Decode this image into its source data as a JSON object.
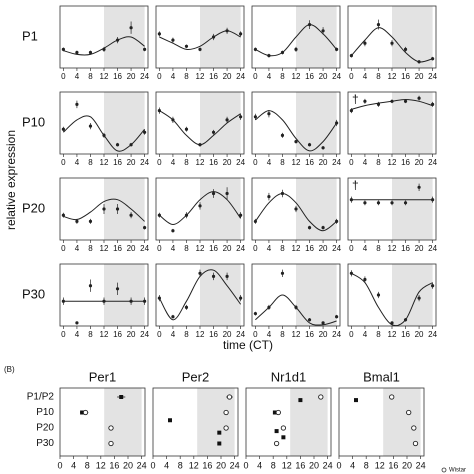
{
  "chart_data": [
    {
      "type": "line",
      "xlabel": "time (CT)",
      "ylabel": "relative expression",
      "row_labels": [
        "P1",
        "P10",
        "P20",
        "P30"
      ],
      "x": [
        0,
        4,
        8,
        12,
        16,
        20,
        24
      ],
      "xticks": [
        0,
        4,
        8,
        12,
        16,
        20,
        24
      ],
      "xlim": [
        -1,
        25
      ],
      "ylim": [
        0,
        1
      ],
      "shade": [
        12,
        24
      ],
      "point_color": "#222222",
      "curve_color": "#222222",
      "shade_color": "#e3e3e3",
      "panels": [
        {
          "values": [
            0.3,
            0.25,
            0.25,
            0.3,
            0.45,
            0.65,
            0.3
          ],
          "errors": [
            0.03,
            0.03,
            0.03,
            0.04,
            0.05,
            0.1,
            0.03
          ],
          "curve": [
            0.28,
            0.22,
            0.22,
            0.32,
            0.45,
            0.5,
            0.35
          ]
        },
        {
          "values": [
            0.55,
            0.45,
            0.35,
            0.3,
            0.5,
            0.6,
            0.55
          ],
          "errors": [
            0.04,
            0.04,
            0.03,
            0.03,
            0.05,
            0.05,
            0.04
          ],
          "curve": [
            0.5,
            0.4,
            0.3,
            0.35,
            0.5,
            0.6,
            0.5
          ]
        },
        {
          "values": [
            0.3,
            0.2,
            0.25,
            0.3,
            0.7,
            0.6,
            0.3
          ],
          "errors": [
            0.03,
            0.03,
            0.03,
            0.04,
            0.07,
            0.06,
            0.03
          ],
          "curve": [
            0.3,
            0.2,
            0.25,
            0.5,
            0.7,
            0.55,
            0.3
          ]
        },
        {
          "values": [
            0.2,
            0.4,
            0.7,
            0.4,
            0.3,
            0.1,
            0.15
          ],
          "errors": [
            0.03,
            0.05,
            0.08,
            0.05,
            0.04,
            0.03,
            0.03
          ],
          "curve": [
            0.2,
            0.45,
            0.65,
            0.5,
            0.25,
            0.1,
            0.15
          ]
        },
        {
          "values": [
            0.4,
            0.8,
            0.45,
            0.3,
            0.15,
            0.15,
            0.35
          ],
          "errors": [
            0.04,
            0.06,
            0.05,
            0.04,
            0.03,
            0.03,
            0.04
          ],
          "curve": [
            0.35,
            0.55,
            0.6,
            0.3,
            0.05,
            0.15,
            0.4
          ]
        },
        {
          "values": [
            0.7,
            0.55,
            0.4,
            0.15,
            0.35,
            0.55,
            0.6
          ],
          "errors": [
            0.05,
            0.05,
            0.04,
            0.03,
            0.04,
            0.05,
            0.05
          ],
          "curve": [
            0.7,
            0.55,
            0.3,
            0.15,
            0.3,
            0.5,
            0.65
          ]
        },
        {
          "values": [
            0.6,
            0.65,
            0.3,
            0.2,
            0.15,
            0.1,
            0.5
          ],
          "errors": [
            0.05,
            0.06,
            0.04,
            0.03,
            0.03,
            0.03,
            0.05
          ],
          "curve": [
            0.55,
            0.7,
            0.55,
            0.25,
            0.05,
            0.2,
            0.5
          ]
        },
        {
          "values": [
            0.7,
            0.85,
            0.8,
            0.85,
            0.85,
            0.9,
            0.8
          ],
          "errors": [
            0.04,
            0.04,
            0.04,
            0.03,
            0.03,
            0.04,
            0.04
          ],
          "curve": [
            0.72,
            0.78,
            0.82,
            0.85,
            0.88,
            0.85,
            0.78
          ],
          "mark": "†"
        },
        {
          "values": [
            0.4,
            0.3,
            0.3,
            0.5,
            0.5,
            0.4,
            0.2
          ],
          "errors": [
            0.04,
            0.04,
            0.04,
            0.08,
            0.08,
            0.05,
            0.03
          ],
          "curve": [
            0.38,
            0.33,
            0.45,
            0.62,
            0.65,
            0.5,
            0.3
          ]
        },
        {
          "values": [
            0.4,
            0.15,
            0.4,
            0.55,
            0.75,
            0.75,
            0.4
          ],
          "errors": [
            0.04,
            0.03,
            0.05,
            0.06,
            0.07,
            0.1,
            0.05
          ],
          "curve": [
            0.4,
            0.25,
            0.4,
            0.65,
            0.78,
            0.65,
            0.35
          ]
        },
        {
          "values": [
            0.3,
            0.7,
            0.75,
            0.5,
            0.2,
            0.2,
            0.3
          ],
          "errors": [
            0.04,
            0.06,
            0.06,
            0.05,
            0.03,
            0.03,
            0.04
          ],
          "curve": [
            0.3,
            0.6,
            0.75,
            0.6,
            0.3,
            0.15,
            0.3
          ]
        },
        {
          "values": [
            0.65,
            0.6,
            0.6,
            0.6,
            0.6,
            0.85,
            0.65
          ],
          "errors": [
            0.05,
            0.04,
            0.04,
            0.04,
            0.04,
            0.06,
            0.05
          ],
          "curve": [
            0.65,
            0.65,
            0.65,
            0.65,
            0.65,
            0.65,
            0.65
          ],
          "mark": "†"
        },
        {
          "values": [
            0.4,
            0.05,
            0.65,
            0.4,
            0.6,
            0.4,
            0.4
          ],
          "errors": [
            0.06,
            0.02,
            0.1,
            0.06,
            0.1,
            0.06,
            0.06
          ],
          "curve": [
            0.4,
            0.4,
            0.4,
            0.4,
            0.4,
            0.4,
            0.4
          ]
        },
        {
          "values": [
            0.45,
            0.15,
            0.3,
            0.85,
            0.8,
            0.8,
            0.45
          ],
          "errors": [
            0.05,
            0.03,
            0.04,
            0.06,
            0.06,
            0.06,
            0.05
          ],
          "curve": [
            0.45,
            0.1,
            0.4,
            0.8,
            0.9,
            0.65,
            0.35
          ]
        },
        {
          "values": [
            0.2,
            0.3,
            0.85,
            0.3,
            0.1,
            0.05,
            0.15
          ],
          "errors": [
            0.03,
            0.04,
            0.06,
            0.04,
            0.03,
            0.02,
            0.03
          ],
          "curve": [
            0.1,
            0.3,
            0.5,
            0.3,
            0.05,
            0.02,
            0.08
          ]
        },
        {
          "values": [
            0.85,
            0.75,
            0.5,
            0.05,
            0.1,
            0.45,
            0.65
          ],
          "errors": [
            0.05,
            0.05,
            0.05,
            0.02,
            0.03,
            0.05,
            0.05
          ],
          "curve": [
            0.85,
            0.7,
            0.3,
            0.02,
            0.1,
            0.55,
            0.7
          ]
        }
      ]
    },
    {
      "type": "scatter",
      "label": "(B)",
      "legend": "Wistar",
      "row_labels": [
        "P1/P2",
        "P10",
        "P20",
        "P30"
      ],
      "xticks": [
        0,
        4,
        8,
        12,
        16,
        20,
        24
      ],
      "xlim": [
        0,
        25
      ],
      "shade": [
        13,
        24
      ],
      "shade_color": "#e3e3e3",
      "panels": [
        {
          "title": "Per1",
          "points": [
            {
              "x": 18,
              "err": 1.2,
              "row": 0,
              "filled": true
            },
            {
              "x": 6.5,
              "err": 0.6,
              "row": 1,
              "filled": true
            },
            {
              "x": 7.5,
              "err": 0.8,
              "row": 1,
              "filled": false
            },
            {
              "x": 15,
              "err": 0.5,
              "row": 2,
              "filled": false
            },
            {
              "x": 15,
              "err": 0.4,
              "row": 3,
              "filled": false
            }
          ]
        },
        {
          "title": "Per2",
          "points": [
            {
              "x": 22.5,
              "err": 1,
              "row": 0,
              "filled": false
            },
            {
              "x": 21.5,
              "err": 0.6,
              "row": 1,
              "filled": false
            },
            {
              "x": 5,
              "err": 0.4,
              "row": 1.5,
              "filled": true
            },
            {
              "x": 21.5,
              "err": 0.5,
              "row": 2,
              "filled": false
            },
            {
              "x": 19.5,
              "err": 0.4,
              "row": 2.3,
              "filled": true
            },
            {
              "x": 19.5,
              "err": 0.4,
              "row": 3,
              "filled": true
            }
          ]
        },
        {
          "title": "Nr1d1",
          "points": [
            {
              "x": 22,
              "err": 0.5,
              "row": 0,
              "filled": false
            },
            {
              "x": 16,
              "err": 0.4,
              "row": 0.2,
              "filled": true
            },
            {
              "x": 8.5,
              "err": 0.4,
              "row": 1,
              "filled": true
            },
            {
              "x": 9.5,
              "err": 0.5,
              "row": 1,
              "filled": false
            },
            {
              "x": 11,
              "err": 0.4,
              "row": 2,
              "filled": false
            },
            {
              "x": 9,
              "err": 0.3,
              "row": 2.2,
              "filled": true
            },
            {
              "x": 11,
              "err": 0.3,
              "row": 2.6,
              "filled": true
            },
            {
              "x": 9,
              "err": 0.3,
              "row": 3,
              "filled": false
            }
          ]
        },
        {
          "title": "Bmal1",
          "points": [
            {
              "x": 15.5,
              "err": 0.5,
              "row": 0,
              "filled": false
            },
            {
              "x": 5,
              "err": 0.5,
              "row": 0.2,
              "filled": true
            },
            {
              "x": 20.5,
              "err": 0.6,
              "row": 1,
              "filled": false
            },
            {
              "x": 22,
              "err": 0.5,
              "row": 2,
              "filled": false
            },
            {
              "x": 22.5,
              "err": 0.5,
              "row": 3,
              "filled": false
            }
          ]
        }
      ]
    }
  ]
}
